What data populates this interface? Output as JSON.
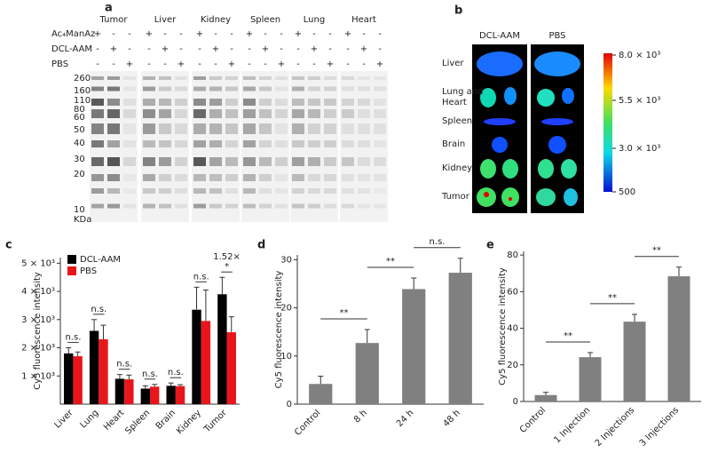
{
  "panel_labels": [
    "a",
    "b",
    "c",
    "d",
    "e"
  ],
  "blot": {
    "tissues": [
      "Tumor",
      "Liver",
      "Kidney",
      "Spleen",
      "Lung",
      "Heart"
    ],
    "rows": [
      "Ac₄ManAz",
      "DCL-AAM",
      "PBS"
    ],
    "signs": [
      [
        "+",
        "-",
        "-",
        "+",
        "-",
        "-",
        "+",
        "-",
        "-",
        "+",
        "-",
        "-",
        "+",
        "-",
        "-",
        "+",
        "-",
        "-"
      ],
      [
        "-",
        "+",
        "-",
        "-",
        "+",
        "-",
        "-",
        "+",
        "-",
        "-",
        "+",
        "-",
        "-",
        "+",
        "-",
        "-",
        "+",
        "-"
      ],
      [
        "-",
        "-",
        "+",
        "-",
        "-",
        "+",
        "-",
        "-",
        "+",
        "-",
        "-",
        "+",
        "-",
        "-",
        "+",
        "-",
        "-",
        "+"
      ]
    ],
    "markers": [
      "260",
      "160",
      "110",
      "80",
      "60",
      "50",
      "40",
      "30",
      "20",
      "10",
      "KDa"
    ]
  },
  "imaging": {
    "columns": [
      "DCL-AAM",
      "PBS"
    ],
    "organs": [
      "Liver",
      "Lung and Heart",
      "Spleen",
      "Brain",
      "Kidney",
      "Tumor"
    ],
    "colorbar_labels": [
      "8.0 × 10³",
      "5.5 × 10³",
      "3.0 × 10³",
      "500"
    ]
  },
  "chart_data": [
    {
      "type": "bar",
      "y_label": "Cy5 fluorescence intensity",
      "categories": [
        "Liver",
        "Lung",
        "Heart",
        "Spleen",
        "Brain",
        "Kidney",
        "Tumor"
      ],
      "series": [
        {
          "name": "DCL-AAM",
          "color": "#000000",
          "values": [
            1800,
            2600,
            900,
            550,
            650,
            3350,
            3900
          ],
          "errors": [
            200,
            400,
            150,
            100,
            100,
            800,
            600
          ]
        },
        {
          "name": "PBS",
          "color": "#e8161b",
          "values": [
            1700,
            2300,
            880,
            620,
            640,
            2950,
            2550
          ],
          "errors": [
            150,
            500,
            150,
            80,
            50,
            1100,
            550
          ]
        }
      ],
      "ylim": [
        0,
        5200
      ],
      "yticks": [
        {
          "value": 1000,
          "label": "1 × 10³"
        },
        {
          "value": 2000,
          "label": "2 × 10³"
        },
        {
          "value": 3000,
          "label": "3 × 10³"
        },
        {
          "value": 4000,
          "label": "4 × 10³"
        },
        {
          "value": 5000,
          "label": "5 × 10³"
        }
      ],
      "legend": "upper left",
      "annotations": [
        "n.s.",
        "n.s.",
        "n.s.",
        "n.s.",
        "n.s.",
        "n.s.",
        "*"
      ],
      "fold_label": "1.52×"
    },
    {
      "type": "bar",
      "y_label": "Cy5 fluorescence intensity",
      "categories": [
        "Control",
        "8 h",
        "24 h",
        "48 h"
      ],
      "values": [
        4.2,
        12.7,
        23.9,
        27.3
      ],
      "errors": [
        1.6,
        2.8,
        2.3,
        3.0
      ],
      "color": "#808080",
      "ylim": [
        0,
        31
      ],
      "yticks": [
        0,
        10,
        20,
        30
      ],
      "comparisons": [
        "**",
        "**",
        "n.s."
      ]
    },
    {
      "type": "bar",
      "y_label": "Cy5 fluorescence intensity",
      "categories": [
        "Control",
        "1 Injection",
        "2 Injections",
        "3 Injections"
      ],
      "values": [
        3.5,
        24.2,
        43.6,
        68.4
      ],
      "errors": [
        1.5,
        2.5,
        4,
        5
      ],
      "color": "#808080",
      "ylim": [
        0,
        82
      ],
      "yticks": [
        0,
        20,
        40,
        60,
        80
      ],
      "comparisons": [
        "**",
        "**",
        "**"
      ]
    }
  ]
}
